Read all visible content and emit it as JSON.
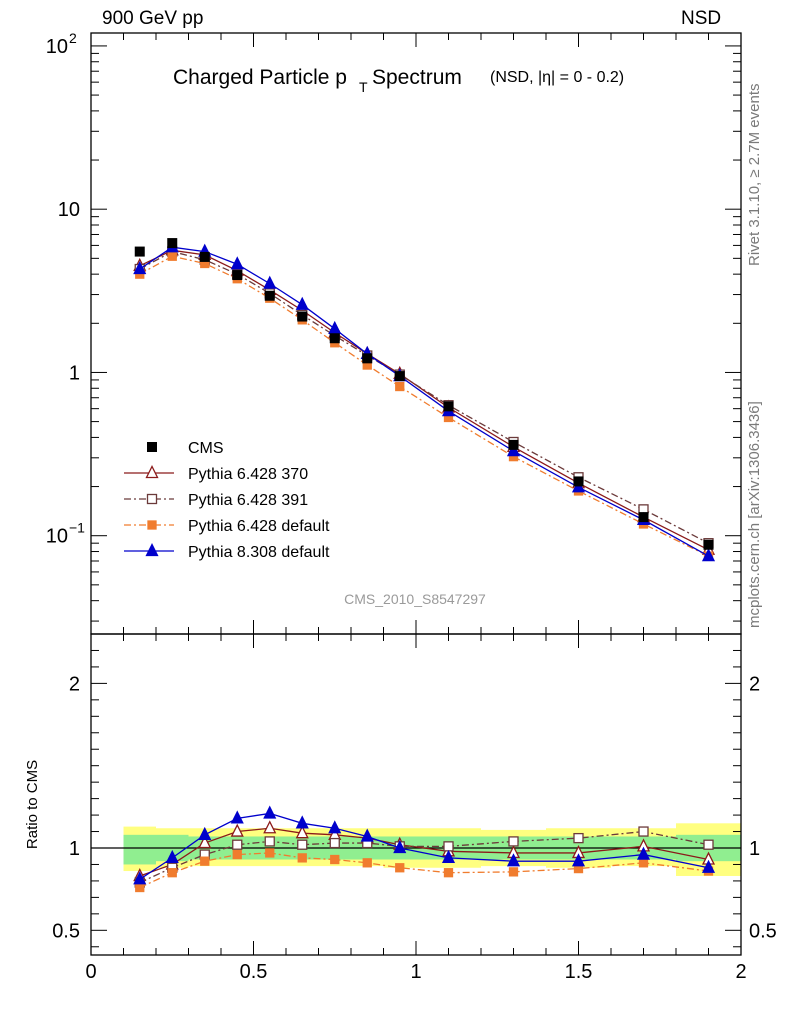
{
  "header": {
    "left": "900 GeV pp",
    "right": "NSD"
  },
  "side": {
    "rivet": "Rivet 3.1.10, ≥ 2.7M events",
    "mcplots": "mcplots.cern.ch [arXiv:1306.3436]"
  },
  "chart_data": {
    "type": "line",
    "title": "Charged Particle p",
    "title_sub": "T",
    "title_tail": "Spectrum",
    "title_note": "(NSD, |η| =    0 - 0.2)",
    "watermark": "CMS_2010_S8547297",
    "ratio_ylabel": "Ratio to CMS",
    "log_y_main": true,
    "ylim_main": [
      0.025,
      120
    ],
    "ylim_ratio": [
      0.35,
      2.3
    ],
    "xlim": [
      0,
      2
    ],
    "grid": false,
    "legend_position": "bottom-left",
    "x_ticks": [
      "0",
      "0.5",
      "1",
      "1.5",
      "2"
    ],
    "main_y_ticks": [
      "10^-1",
      "1",
      "10",
      "10^2"
    ],
    "ratio_y_ticks": [
      "0.5",
      "1",
      "2"
    ],
    "x": [
      0.15,
      0.25,
      0.35,
      0.45,
      0.55,
      0.65,
      0.75,
      0.85,
      0.95,
      1.1,
      1.3,
      1.5,
      1.7,
      1.9
    ],
    "data": {
      "name": "CMS",
      "color": "#000000",
      "values": [
        5.5,
        6.2,
        5.1,
        3.95,
        2.95,
        2.2,
        1.62,
        1.22,
        0.95,
        0.62,
        0.36,
        0.215,
        0.13,
        0.088
      ]
    },
    "series": [
      {
        "name": "Pythia 6.428 370",
        "color": "#8b1a1a",
        "marker": "open-triangle",
        "dash": "solid",
        "values": [
          4.5,
          5.6,
          5.25,
          4.2,
          3.2,
          2.4,
          1.75,
          1.3,
          0.98,
          0.61,
          0.35,
          0.21,
          0.13,
          0.082
        ],
        "ratio": [
          0.83,
          0.9,
          1.03,
          1.1,
          1.12,
          1.09,
          1.08,
          1.06,
          1.02,
          0.98,
          0.97,
          0.97,
          1.01,
          0.93
        ]
      },
      {
        "name": "Pythia 6.428 391",
        "color": "#6b3a3a",
        "marker": "open-square",
        "dash": "dashdot",
        "values": [
          4.3,
          5.5,
          4.9,
          4.0,
          3.05,
          2.25,
          1.68,
          1.27,
          0.97,
          0.63,
          0.375,
          0.228,
          0.145,
          0.09
        ],
        "ratio": [
          0.79,
          0.88,
          0.96,
          1.02,
          1.04,
          1.02,
          1.03,
          1.03,
          1.01,
          1.01,
          1.04,
          1.06,
          1.1,
          1.02
        ]
      },
      {
        "name": "Pythia 6.428 default",
        "color": "#f07c2e",
        "marker": "filled-square",
        "dash": "dashdot",
        "values": [
          4.0,
          5.15,
          4.65,
          3.75,
          2.85,
          2.1,
          1.52,
          1.11,
          0.82,
          0.53,
          0.305,
          0.188,
          0.118,
          0.075
        ],
        "ratio": [
          0.76,
          0.85,
          0.92,
          0.96,
          0.97,
          0.94,
          0.93,
          0.91,
          0.88,
          0.85,
          0.855,
          0.875,
          0.91,
          0.86
        ]
      },
      {
        "name": "Pythia 8.308 default",
        "color": "#0000cc",
        "marker": "filled-triangle",
        "dash": "solid",
        "values": [
          4.3,
          5.85,
          5.5,
          4.6,
          3.5,
          2.6,
          1.85,
          1.3,
          0.95,
          0.58,
          0.33,
          0.198,
          0.125,
          0.075
        ],
        "ratio": [
          0.81,
          0.94,
          1.08,
          1.18,
          1.21,
          1.15,
          1.12,
          1.07,
          1.0,
          0.94,
          0.92,
          0.92,
          0.96,
          0.88
        ]
      }
    ],
    "bands": [
      {
        "x": [
          0.1,
          0.2
        ],
        "inner": [
          0.9,
          1.08
        ],
        "outer": [
          0.86,
          1.13
        ]
      },
      {
        "x": [
          0.2,
          0.3
        ],
        "inner": [
          0.92,
          1.08
        ],
        "outer": [
          0.88,
          1.12
        ]
      },
      {
        "x": [
          0.3,
          0.4
        ],
        "inner": [
          0.93,
          1.07
        ],
        "outer": [
          0.89,
          1.12
        ]
      },
      {
        "x": [
          0.4,
          0.5
        ],
        "inner": [
          0.93,
          1.07
        ],
        "outer": [
          0.89,
          1.12
        ]
      },
      {
        "x": [
          0.5,
          0.6
        ],
        "inner": [
          0.93,
          1.07
        ],
        "outer": [
          0.89,
          1.12
        ]
      },
      {
        "x": [
          0.6,
          0.7
        ],
        "inner": [
          0.93,
          1.07
        ],
        "outer": [
          0.89,
          1.12
        ]
      },
      {
        "x": [
          0.7,
          0.8
        ],
        "inner": [
          0.93,
          1.07
        ],
        "outer": [
          0.89,
          1.12
        ]
      },
      {
        "x": [
          0.8,
          0.9
        ],
        "inner": [
          0.93,
          1.07
        ],
        "outer": [
          0.89,
          1.12
        ]
      },
      {
        "x": [
          0.9,
          1.0
        ],
        "inner": [
          0.93,
          1.07
        ],
        "outer": [
          0.88,
          1.12
        ]
      },
      {
        "x": [
          1.0,
          1.2
        ],
        "inner": [
          0.93,
          1.07
        ],
        "outer": [
          0.88,
          1.12
        ]
      },
      {
        "x": [
          1.2,
          1.4
        ],
        "inner": [
          0.93,
          1.07
        ],
        "outer": [
          0.89,
          1.11
        ]
      },
      {
        "x": [
          1.4,
          1.6
        ],
        "inner": [
          0.93,
          1.07
        ],
        "outer": [
          0.88,
          1.12
        ]
      },
      {
        "x": [
          1.6,
          1.8
        ],
        "inner": [
          0.93,
          1.07
        ],
        "outer": [
          0.89,
          1.12
        ]
      },
      {
        "x": [
          1.8,
          2.0
        ],
        "inner": [
          0.92,
          1.08
        ],
        "outer": [
          0.83,
          1.15
        ]
      }
    ]
  }
}
